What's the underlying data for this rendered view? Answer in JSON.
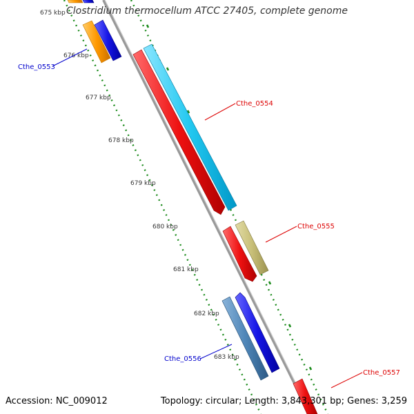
{
  "title": "Clostridium thermocellum ATCC 27405, complete genome",
  "accession": "Accession: NC_009012",
  "summary": "Topology: circular; Length: 3,843,301 bp; Genes: 3,259",
  "kbp_labels": [
    "675 kbp",
    "676 kbp",
    "677 kbp",
    "678 kbp",
    "679 kbp",
    "680 kbp",
    "681 kbp",
    "682 kbp",
    "683 kbp"
  ],
  "genes": [
    {
      "name": "Cthe_0553",
      "label_color": "#0000cc"
    },
    {
      "name": "Cthe_0554",
      "label_color": "#dd0000"
    },
    {
      "name": "Cthe_0555",
      "label_color": "#dd0000"
    },
    {
      "name": "Cthe_0556",
      "label_color": "#0000cc"
    },
    {
      "name": "Cthe_0557",
      "label_color": "#dd0000"
    }
  ],
  "colors": {
    "backbone": "#999999",
    "tick_dots": "#1a8a1a",
    "red": "#ee1111",
    "cyan": "#22c8f0",
    "blue": "#1515e6",
    "orange": "#ff9900",
    "khaki": "#c8bf78",
    "steel": "#4f86b8"
  }
}
